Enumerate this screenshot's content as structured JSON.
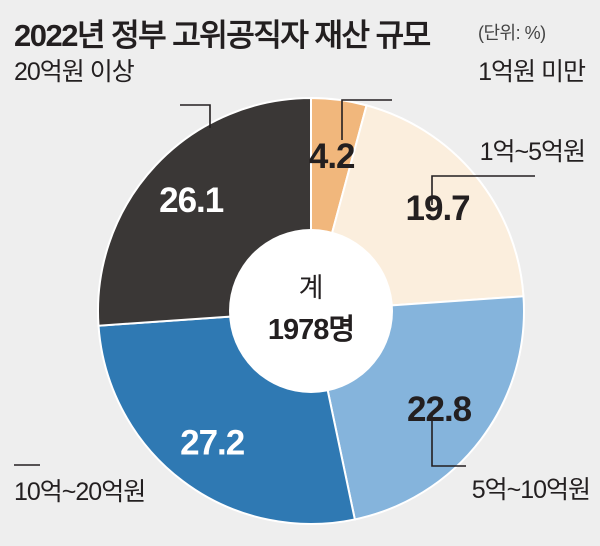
{
  "title": "2022년 정부 고위공직자 재산 규모",
  "unit": "(단위: %)",
  "center": {
    "line1": "계",
    "line2": "1978명"
  },
  "chart_data": {
    "type": "pie",
    "title": "2022년 정부 고위공직자 재산 규모",
    "unit": "%",
    "total_label": "계 1978명",
    "slices": [
      {
        "label": "1억원 미만",
        "value": 4.2,
        "value_label": "4.2",
        "color": "#f1b77c",
        "text_color": "#231f20"
      },
      {
        "label": "1억~5억원",
        "value": 19.7,
        "value_label": "19.7",
        "color": "#fbeedd",
        "text_color": "#231f20"
      },
      {
        "label": "5억~10억원",
        "value": 22.8,
        "value_label": "22.8",
        "color": "#85b4dc",
        "text_color": "#231f20"
      },
      {
        "label": "10억~20억원",
        "value": 27.2,
        "value_label": "27.2",
        "color": "#2f79b3",
        "text_color": "#ffffff"
      },
      {
        "label": "20억원 이상",
        "value": 26.1,
        "value_label": "26.1",
        "color": "#3a3736",
        "text_color": "#ffffff"
      }
    ]
  }
}
